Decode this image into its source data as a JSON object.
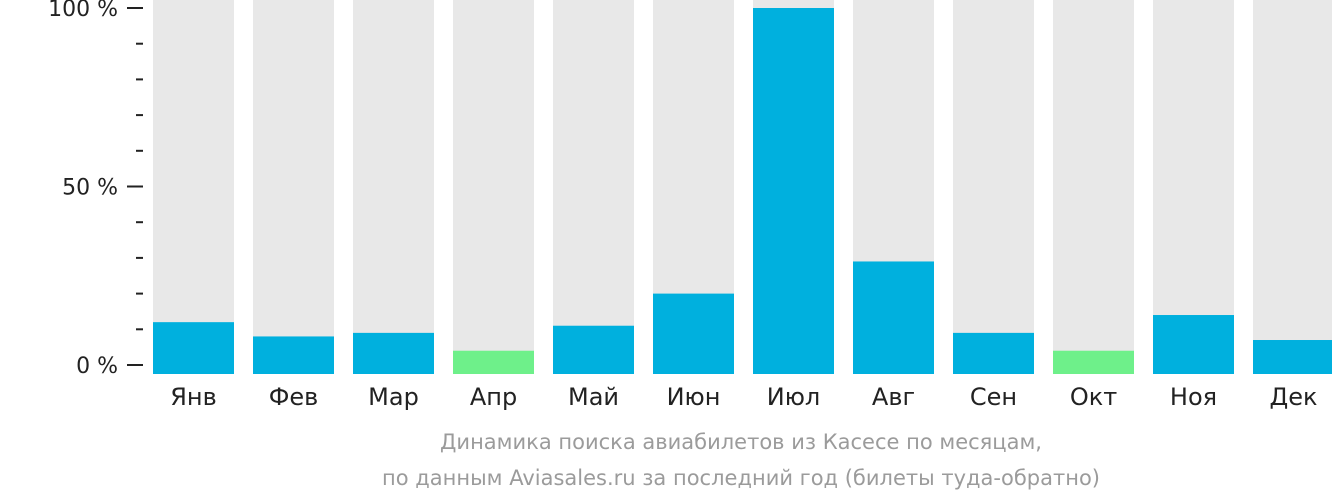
{
  "chart_data": {
    "type": "bar",
    "categories": [
      "Янв",
      "Фев",
      "Мар",
      "Апр",
      "Май",
      "Июн",
      "Июл",
      "Авг",
      "Сен",
      "Окт",
      "Ноя",
      "Дек"
    ],
    "values": [
      12,
      8,
      9,
      4,
      11,
      20,
      100,
      29,
      9,
      4,
      14,
      7
    ],
    "ylim": [
      0,
      100
    ],
    "yticks": [
      {
        "value": 0,
        "label": "0 %"
      },
      {
        "value": 50,
        "label": "50 %"
      },
      {
        "value": 100,
        "label": "100 %"
      }
    ],
    "minor_step": 10,
    "grid": false,
    "legend": "none",
    "colors": {
      "background_bar": "#e8e8e8",
      "bar": "#00b0de",
      "low_bar": "#6ef08a",
      "axis": "#222222"
    },
    "low_categories": [
      "Апр",
      "Окт"
    ]
  },
  "caption": {
    "line1": "Динамика поиска авиабилетов из Касесе по месяцам,",
    "line2": "по данным Aviasales.ru за последний год (билеты туда-обратно)"
  }
}
